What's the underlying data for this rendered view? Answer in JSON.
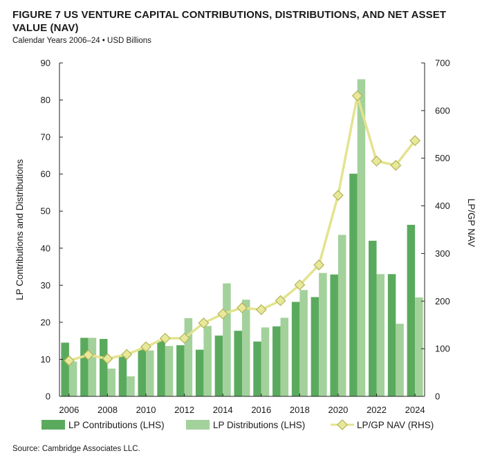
{
  "header": {
    "title": "FIGURE 7  US VENTURE CAPITAL CONTRIBUTIONS, DISTRIBUTIONS, AND NET ASSET VALUE (NAV)",
    "subtitle": "Calendar Years 2006–24 • USD Billions"
  },
  "footer": {
    "source": "Source: Cambridge Associates LLC."
  },
  "colors": {
    "contributions": "#5aaa5e",
    "distributions": "#a3d19b",
    "nav_line": "#e3e38e",
    "nav_marker_fill": "#e8e89a",
    "nav_marker_stroke": "#b3b35a",
    "axis": "#222222"
  },
  "chart_data": {
    "type": "bar",
    "ylabel": "LP Contributions and Distributions",
    "y2label": "LP/GP NAV",
    "ylim": [
      0,
      90
    ],
    "y2lim": [
      0,
      700
    ],
    "yticks": [
      0,
      10,
      20,
      30,
      40,
      50,
      60,
      70,
      80,
      90
    ],
    "y2ticks": [
      0,
      100,
      200,
      300,
      400,
      500,
      600,
      700
    ],
    "years": [
      2006,
      2007,
      2008,
      2009,
      2010,
      2011,
      2012,
      2013,
      2014,
      2015,
      2016,
      2017,
      2018,
      2019,
      2020,
      2021,
      2022,
      2023,
      2024
    ],
    "xticks": [
      "2006",
      "2008",
      "2010",
      "2012",
      "2014",
      "2016",
      "2018",
      "2020",
      "2022",
      "2024"
    ],
    "series": [
      {
        "name": "LP Contributions (LHS)",
        "type": "bar",
        "axis": "left",
        "values": [
          14.5,
          15.8,
          15.5,
          10.8,
          12.6,
          15.2,
          13.8,
          12.6,
          16.4,
          17.7,
          14.8,
          18.9,
          25.5,
          26.8,
          32.9,
          60.1,
          42.0,
          33.0,
          46.3
        ]
      },
      {
        "name": "LP Distributions (LHS)",
        "type": "bar",
        "axis": "left",
        "values": [
          9.4,
          15.8,
          7.5,
          5.4,
          12.4,
          13.6,
          21.1,
          19.0,
          30.5,
          26.1,
          18.6,
          21.2,
          28.7,
          33.3,
          43.6,
          85.6,
          33.0,
          19.6,
          26.7
        ]
      },
      {
        "name": "LP/GP NAV (RHS)",
        "type": "line",
        "axis": "right",
        "values": [
          75,
          87,
          79,
          88,
          104,
          122,
          122,
          154,
          173,
          186,
          182,
          201,
          234,
          276,
          422,
          631,
          494,
          485,
          537
        ]
      }
    ],
    "legend_position": "bottom",
    "grid": false
  }
}
